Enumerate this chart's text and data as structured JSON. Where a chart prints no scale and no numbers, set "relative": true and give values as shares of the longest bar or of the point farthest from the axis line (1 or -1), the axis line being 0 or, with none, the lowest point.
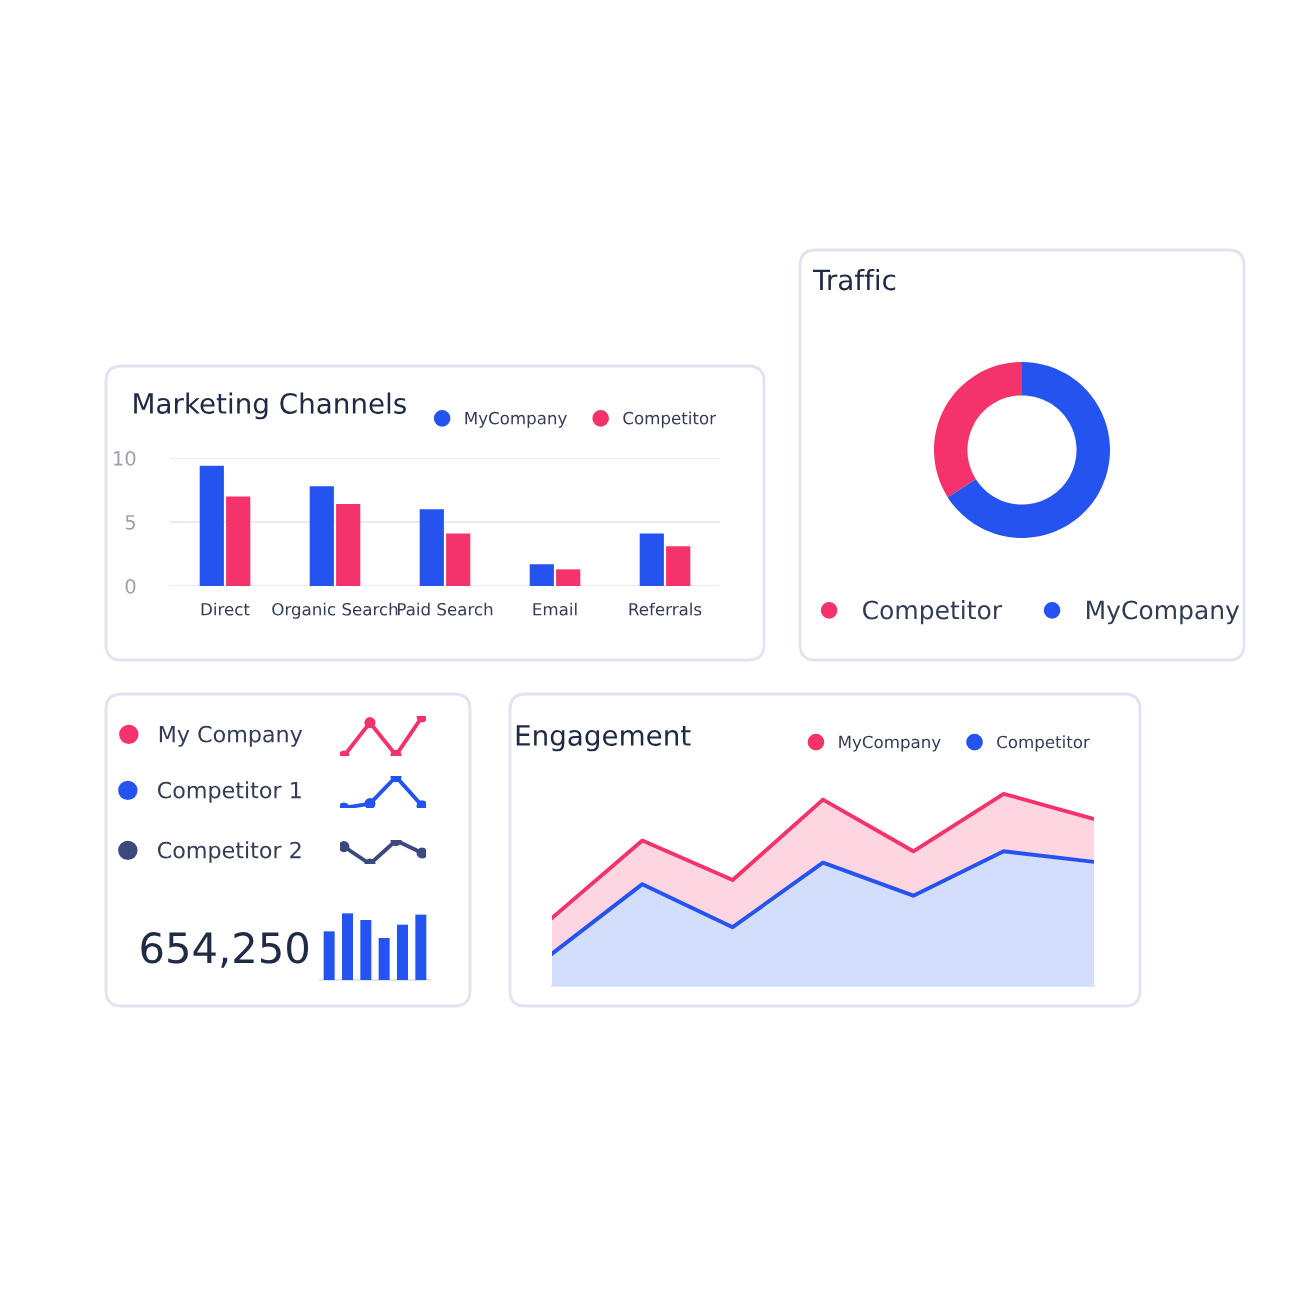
{
  "chart_data": [
    {
      "type": "bar",
      "title": "Marketing Channels",
      "categories": [
        "Direct",
        "Organic Search",
        "Paid Search",
        "Email",
        "Referrals"
      ],
      "series": [
        {
          "name": "MyCompany",
          "color": "#2453f0",
          "values": [
            9.4,
            7.8,
            6,
            1.7,
            4.1
          ]
        },
        {
          "name": "Competitor",
          "color": "#f5336b",
          "values": [
            7,
            6.4,
            4.1,
            1.3,
            3.1
          ]
        }
      ],
      "ylim": [
        0,
        10
      ],
      "yticks": [
        0,
        5,
        10
      ],
      "grid": "y",
      "legend": "top right"
    },
    {
      "type": "donut",
      "title": "Traffic",
      "categories": [
        "Competitor",
        "MyCompany"
      ],
      "values": [
        34,
        66
      ],
      "colors": [
        "#f5336b",
        "#2453f0"
      ],
      "legend": "bottom"
    },
    {
      "type": "line",
      "relative": true,
      "categories": [
        null,
        null,
        null,
        null
      ],
      "series": [
        {
          "name": "My Company",
          "color": "#f5336b",
          "values": [
            0,
            0.85,
            0.02,
            1
          ]
        }
      ],
      "marker": "circle",
      "legend": "left"
    },
    {
      "type": "line",
      "relative": true,
      "categories": [
        null,
        null,
        null,
        null
      ],
      "series": [
        {
          "name": "Competitor 1",
          "color": "#2453f0",
          "values": [
            0,
            0.14,
            1,
            0.07
          ]
        }
      ],
      "marker": "circle",
      "legend": "left"
    },
    {
      "type": "line",
      "relative": true,
      "categories": [
        null,
        null,
        null,
        null
      ],
      "series": [
        {
          "name": "Competitor 2",
          "color": "#3b4a7a",
          "values": [
            0.74,
            0,
            1,
            0.47
          ]
        }
      ],
      "marker": "circle",
      "legend": "left"
    },
    {
      "type": "bar",
      "relative": true,
      "categories": [
        null,
        null,
        null,
        null,
        null,
        null
      ],
      "values": [
        0.73,
        1,
        0.9,
        0.63,
        0.83,
        0.98
      ],
      "color": "#2453f0",
      "annotations": [
        "654,250"
      ]
    },
    {
      "type": "area",
      "title": "Engagement",
      "relative": true,
      "categories": [
        null,
        null,
        null,
        null,
        null,
        null,
        null
      ],
      "series": [
        {
          "name": "MyCompany",
          "color": "#f5336b",
          "values": [
            0.354,
            0.757,
            0.552,
            0.97,
            0.701,
            1,
            0.869
          ]
        },
        {
          "name": "Competitor",
          "color": "#2453f0",
          "values": [
            0.168,
            0.53,
            0.306,
            0.642,
            0.47,
            0.701,
            0.646
          ]
        }
      ],
      "legend": "top right"
    }
  ]
}
